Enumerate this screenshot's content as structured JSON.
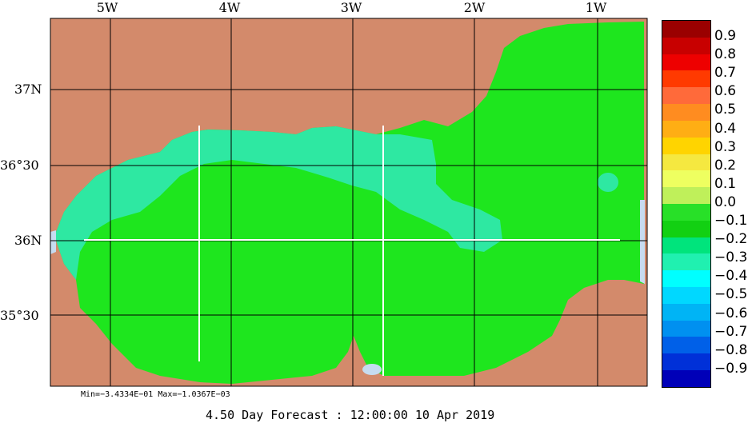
{
  "map": {
    "x_ticks": [
      "5W",
      "4W",
      "3W",
      "2W",
      "1W"
    ],
    "y_ticks": [
      "37N",
      "36°30",
      "36N",
      "35°30"
    ],
    "colors": {
      "land": "#d38a6b",
      "sea_light_green": "#00e060",
      "sea_green": "#1ee61e",
      "sea_aqua": "#2ee8a2",
      "water_body": "#c6dcf0",
      "grid": "#000000",
      "track": "#ffffff"
    }
  },
  "colorbar": {
    "colors": [
      "#9a0000",
      "#c80000",
      "#ee0000",
      "#ff3a00",
      "#ff6a3a",
      "#ff8c20",
      "#ffae14",
      "#ffd400",
      "#f5e840",
      "#eeff60",
      "#bff05a",
      "#28e028",
      "#12d012",
      "#00e47c",
      "#20f0b0",
      "#00ffff",
      "#00d8ff",
      "#00b4f5",
      "#0090f0",
      "#0060e8",
      "#0030d8",
      "#0000b8"
    ],
    "labels": [
      "0.9",
      "0.8",
      "0.7",
      "0.6",
      "0.5",
      "0.4",
      "0.3",
      "0.2",
      "0.1",
      "0.0",
      "−0.1",
      "−0.2",
      "−0.3",
      "−0.4",
      "−0.5",
      "−0.6",
      "−0.7",
      "−0.8",
      "−0.9"
    ]
  },
  "stats": "Min=−3.4334E−01  Max=−1.0367E−03",
  "forecast": "4.50 Day Forecast : 12:00:00  10 Apr 2019"
}
